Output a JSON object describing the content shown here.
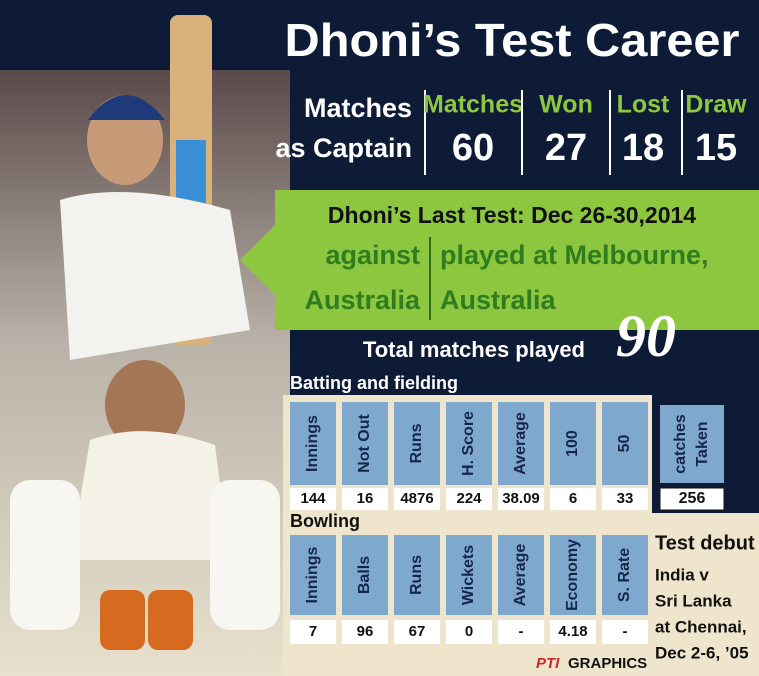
{
  "title": "Dhoni’s  Test Career",
  "captaincy": {
    "label": [
      "Matches",
      "as Captain"
    ],
    "stats": [
      {
        "label": "Matches",
        "value": 60
      },
      {
        "label": "Won",
        "value": 27
      },
      {
        "label": "Lost",
        "value": 18
      },
      {
        "label": "Draw",
        "value": 15
      }
    ]
  },
  "last_test": {
    "heading": "Dhoni’s Last Test: Dec 26-30,2014",
    "against": [
      "against",
      "Australia"
    ],
    "venue": [
      "played at Melbourne,",
      "Australia"
    ]
  },
  "total": {
    "label": "Total matches played",
    "value": 90
  },
  "batting": {
    "title": "Batting and fielding",
    "headers": [
      "Innings",
      "Not Out",
      "Runs",
      "H. Score",
      "Average",
      "100",
      "50"
    ],
    "values": [
      144,
      16,
      4876,
      224,
      38.09,
      6,
      33
    ],
    "catches": {
      "header": [
        "catches",
        "Taken"
      ],
      "value": 256
    }
  },
  "bowling": {
    "title": "Bowling",
    "headers": [
      "Innings",
      "Balls",
      "Runs",
      "Wickets",
      "Average",
      "Economy",
      "S. Rate"
    ],
    "values": [
      7,
      96,
      67,
      0,
      "-",
      4.18,
      "-"
    ]
  },
  "debut": {
    "title": "Test debut",
    "lines": [
      "India v",
      "Sri Lanka",
      "at Chennai,",
      "Dec 2-6, ’05"
    ]
  },
  "credit": {
    "brand": "PTI",
    "text": "GRAPHICS"
  }
}
